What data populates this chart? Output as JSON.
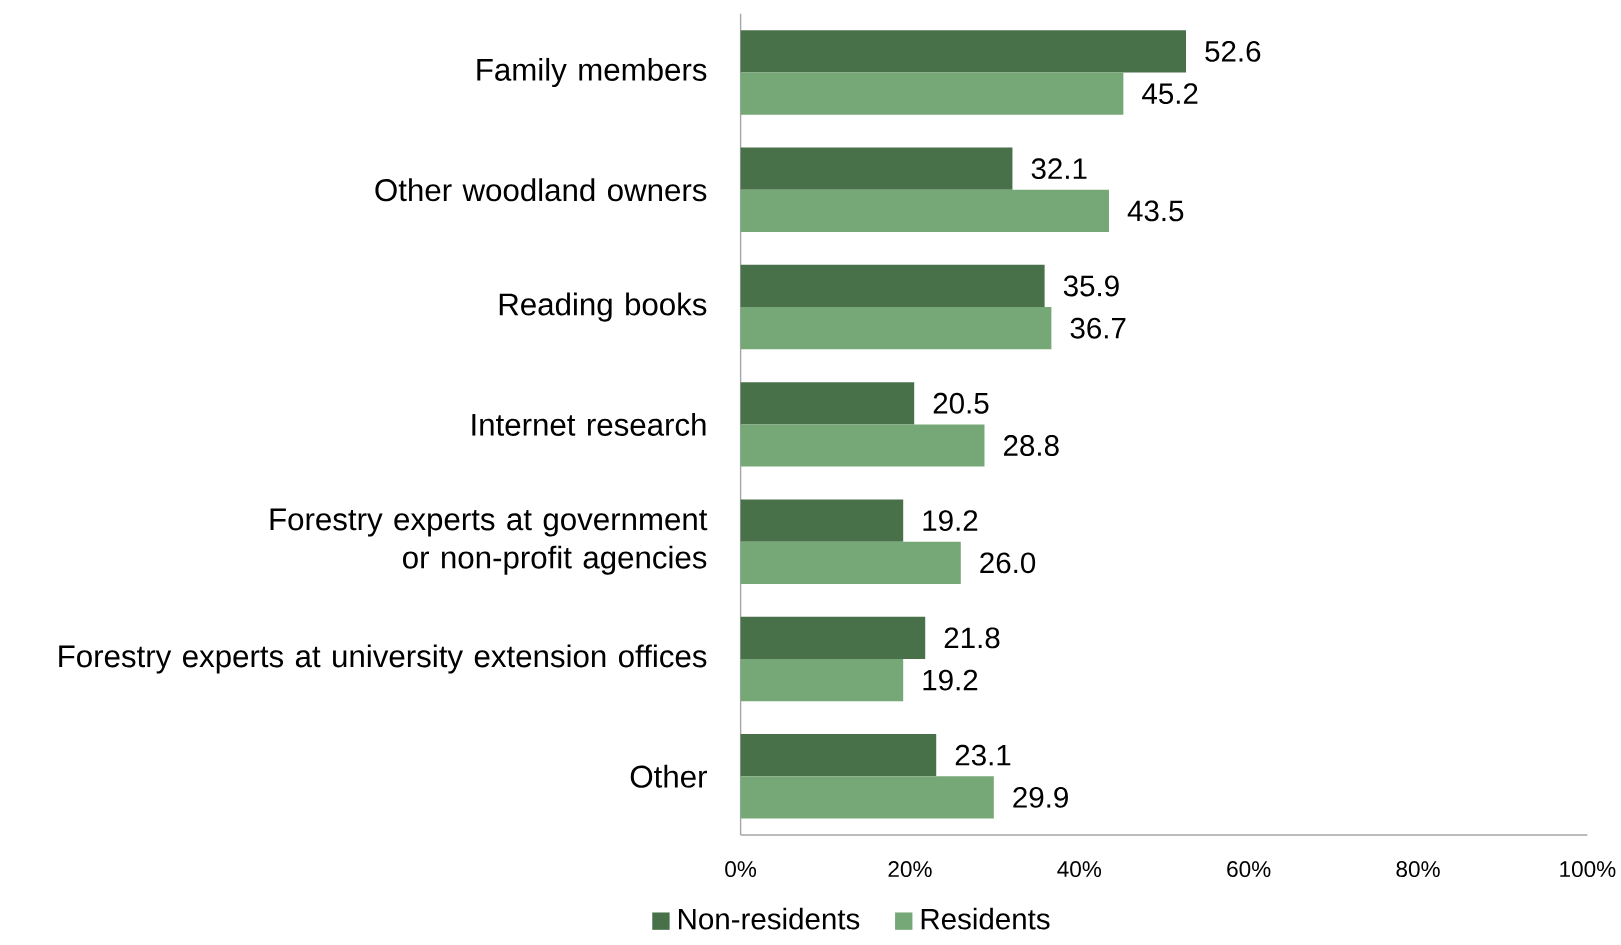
{
  "chart_data": {
    "type": "bar",
    "orientation": "horizontal",
    "categories": [
      "Family members",
      "Other woodland owners",
      "Reading books",
      "Internet research",
      "Forestry experts at government or non-profit agencies",
      "Forestry experts at university extension offices",
      "Other"
    ],
    "series": [
      {
        "name": "Non-residents",
        "color": "#48714a",
        "values": [
          52.6,
          32.1,
          35.9,
          20.5,
          19.2,
          21.8,
          23.1
        ],
        "value_labels": [
          "52.6",
          "32.1",
          "35.9",
          "20.5",
          "19.2",
          "21.8",
          "23.1"
        ]
      },
      {
        "name": "Residents",
        "color": "#76a877",
        "values": [
          45.2,
          43.5,
          36.7,
          28.8,
          26.0,
          19.2,
          29.9
        ],
        "value_labels": [
          "45.2",
          "43.5",
          "36.7",
          "28.8",
          "26.0",
          "19.2",
          "29.9"
        ]
      }
    ],
    "xlim": [
      0,
      100
    ],
    "xticks": [
      {
        "value": 0,
        "label": "0%"
      },
      {
        "value": 20,
        "label": "20%"
      },
      {
        "value": 40,
        "label": "40%"
      },
      {
        "value": 60,
        "label": "60%"
      },
      {
        "value": 80,
        "label": "80%"
      },
      {
        "value": 100,
        "label": "100%"
      }
    ],
    "legend": "bottom"
  }
}
